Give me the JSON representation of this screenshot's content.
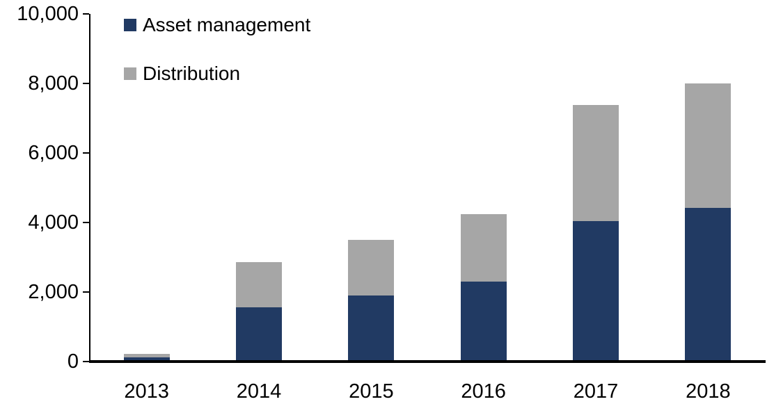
{
  "chart_data": {
    "type": "bar",
    "stacked": true,
    "title": "",
    "xlabel": "",
    "ylabel": "",
    "categories": [
      "2013",
      "2014",
      "2015",
      "2016",
      "2017",
      "2018"
    ],
    "series": [
      {
        "name": "Asset management",
        "color": "#213A63",
        "values": [
          120,
          1560,
          1900,
          2300,
          4040,
          4420
        ]
      },
      {
        "name": "Distribution",
        "color": "#A6A6A6",
        "values": [
          100,
          1300,
          1600,
          1950,
          3350,
          3580
        ]
      }
    ],
    "totals": [
      220,
      2860,
      3500,
      4250,
      7390,
      8000
    ],
    "ylim": [
      0,
      10000
    ],
    "yticks": [
      0,
      2000,
      4000,
      6000,
      8000,
      10000
    ],
    "ytick_labels": [
      "0",
      "2,000",
      "4,000",
      "6,000",
      "8,000",
      "10,000"
    ],
    "grid": false,
    "legend_position": "top-left",
    "axis_color": "#000000",
    "text_color": "#000000"
  }
}
